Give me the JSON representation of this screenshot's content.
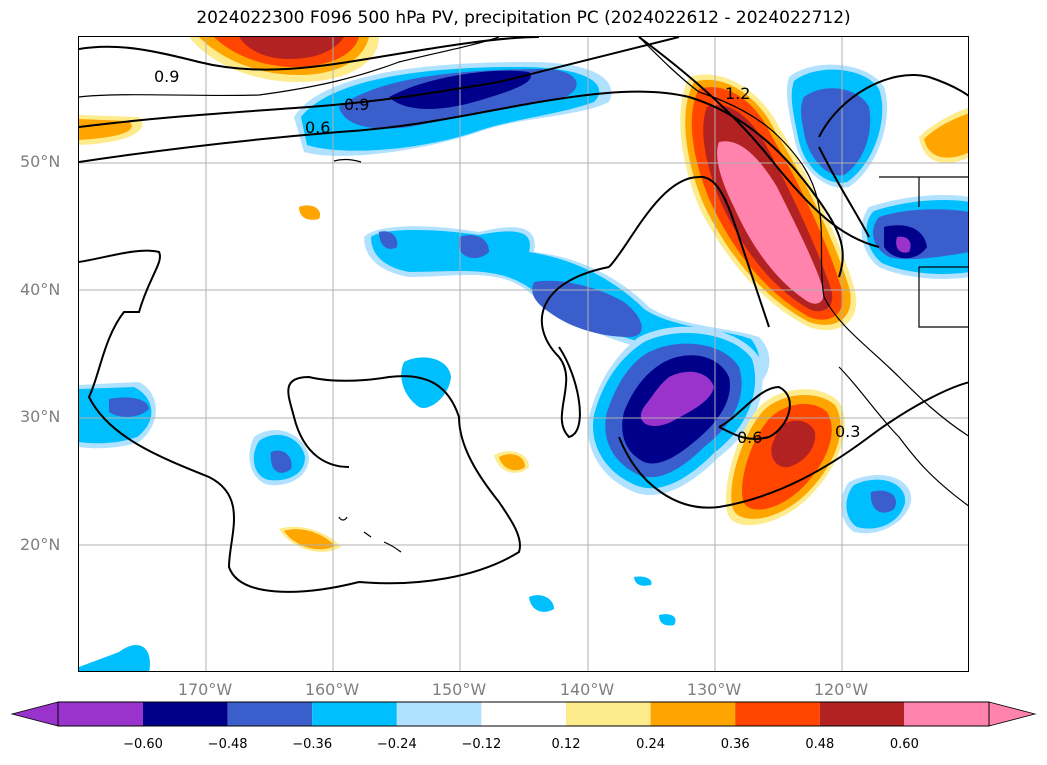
{
  "title": "2024022300 F096 500 hPa PV, precipitation PC (2024022612 - 2024022712)",
  "lat_labels": [
    "50°N",
    "40°N",
    "30°N",
    "20°N"
  ],
  "lon_labels": [
    "170°W",
    "160°W",
    "150°W",
    "140°W",
    "130°W",
    "120°W"
  ],
  "colorbar": {
    "ticks": [
      "−0.60",
      "−0.48",
      "−0.36",
      "−0.24",
      "−0.12",
      "0.12",
      "0.24",
      "0.36",
      "0.48",
      "0.60"
    ],
    "colors": [
      "#9933cc",
      "#00008b",
      "#3a5fcd",
      "#00bfff",
      "#b0e2ff",
      "#ffffff",
      "#fdeb8c",
      "#ffa500",
      "#ff4500",
      "#b22222",
      "#ff83ac"
    ]
  },
  "contour_labels": [
    "0.9",
    "0.9",
    "0.6",
    "1.2",
    "0.6",
    "0.3"
  ]
}
